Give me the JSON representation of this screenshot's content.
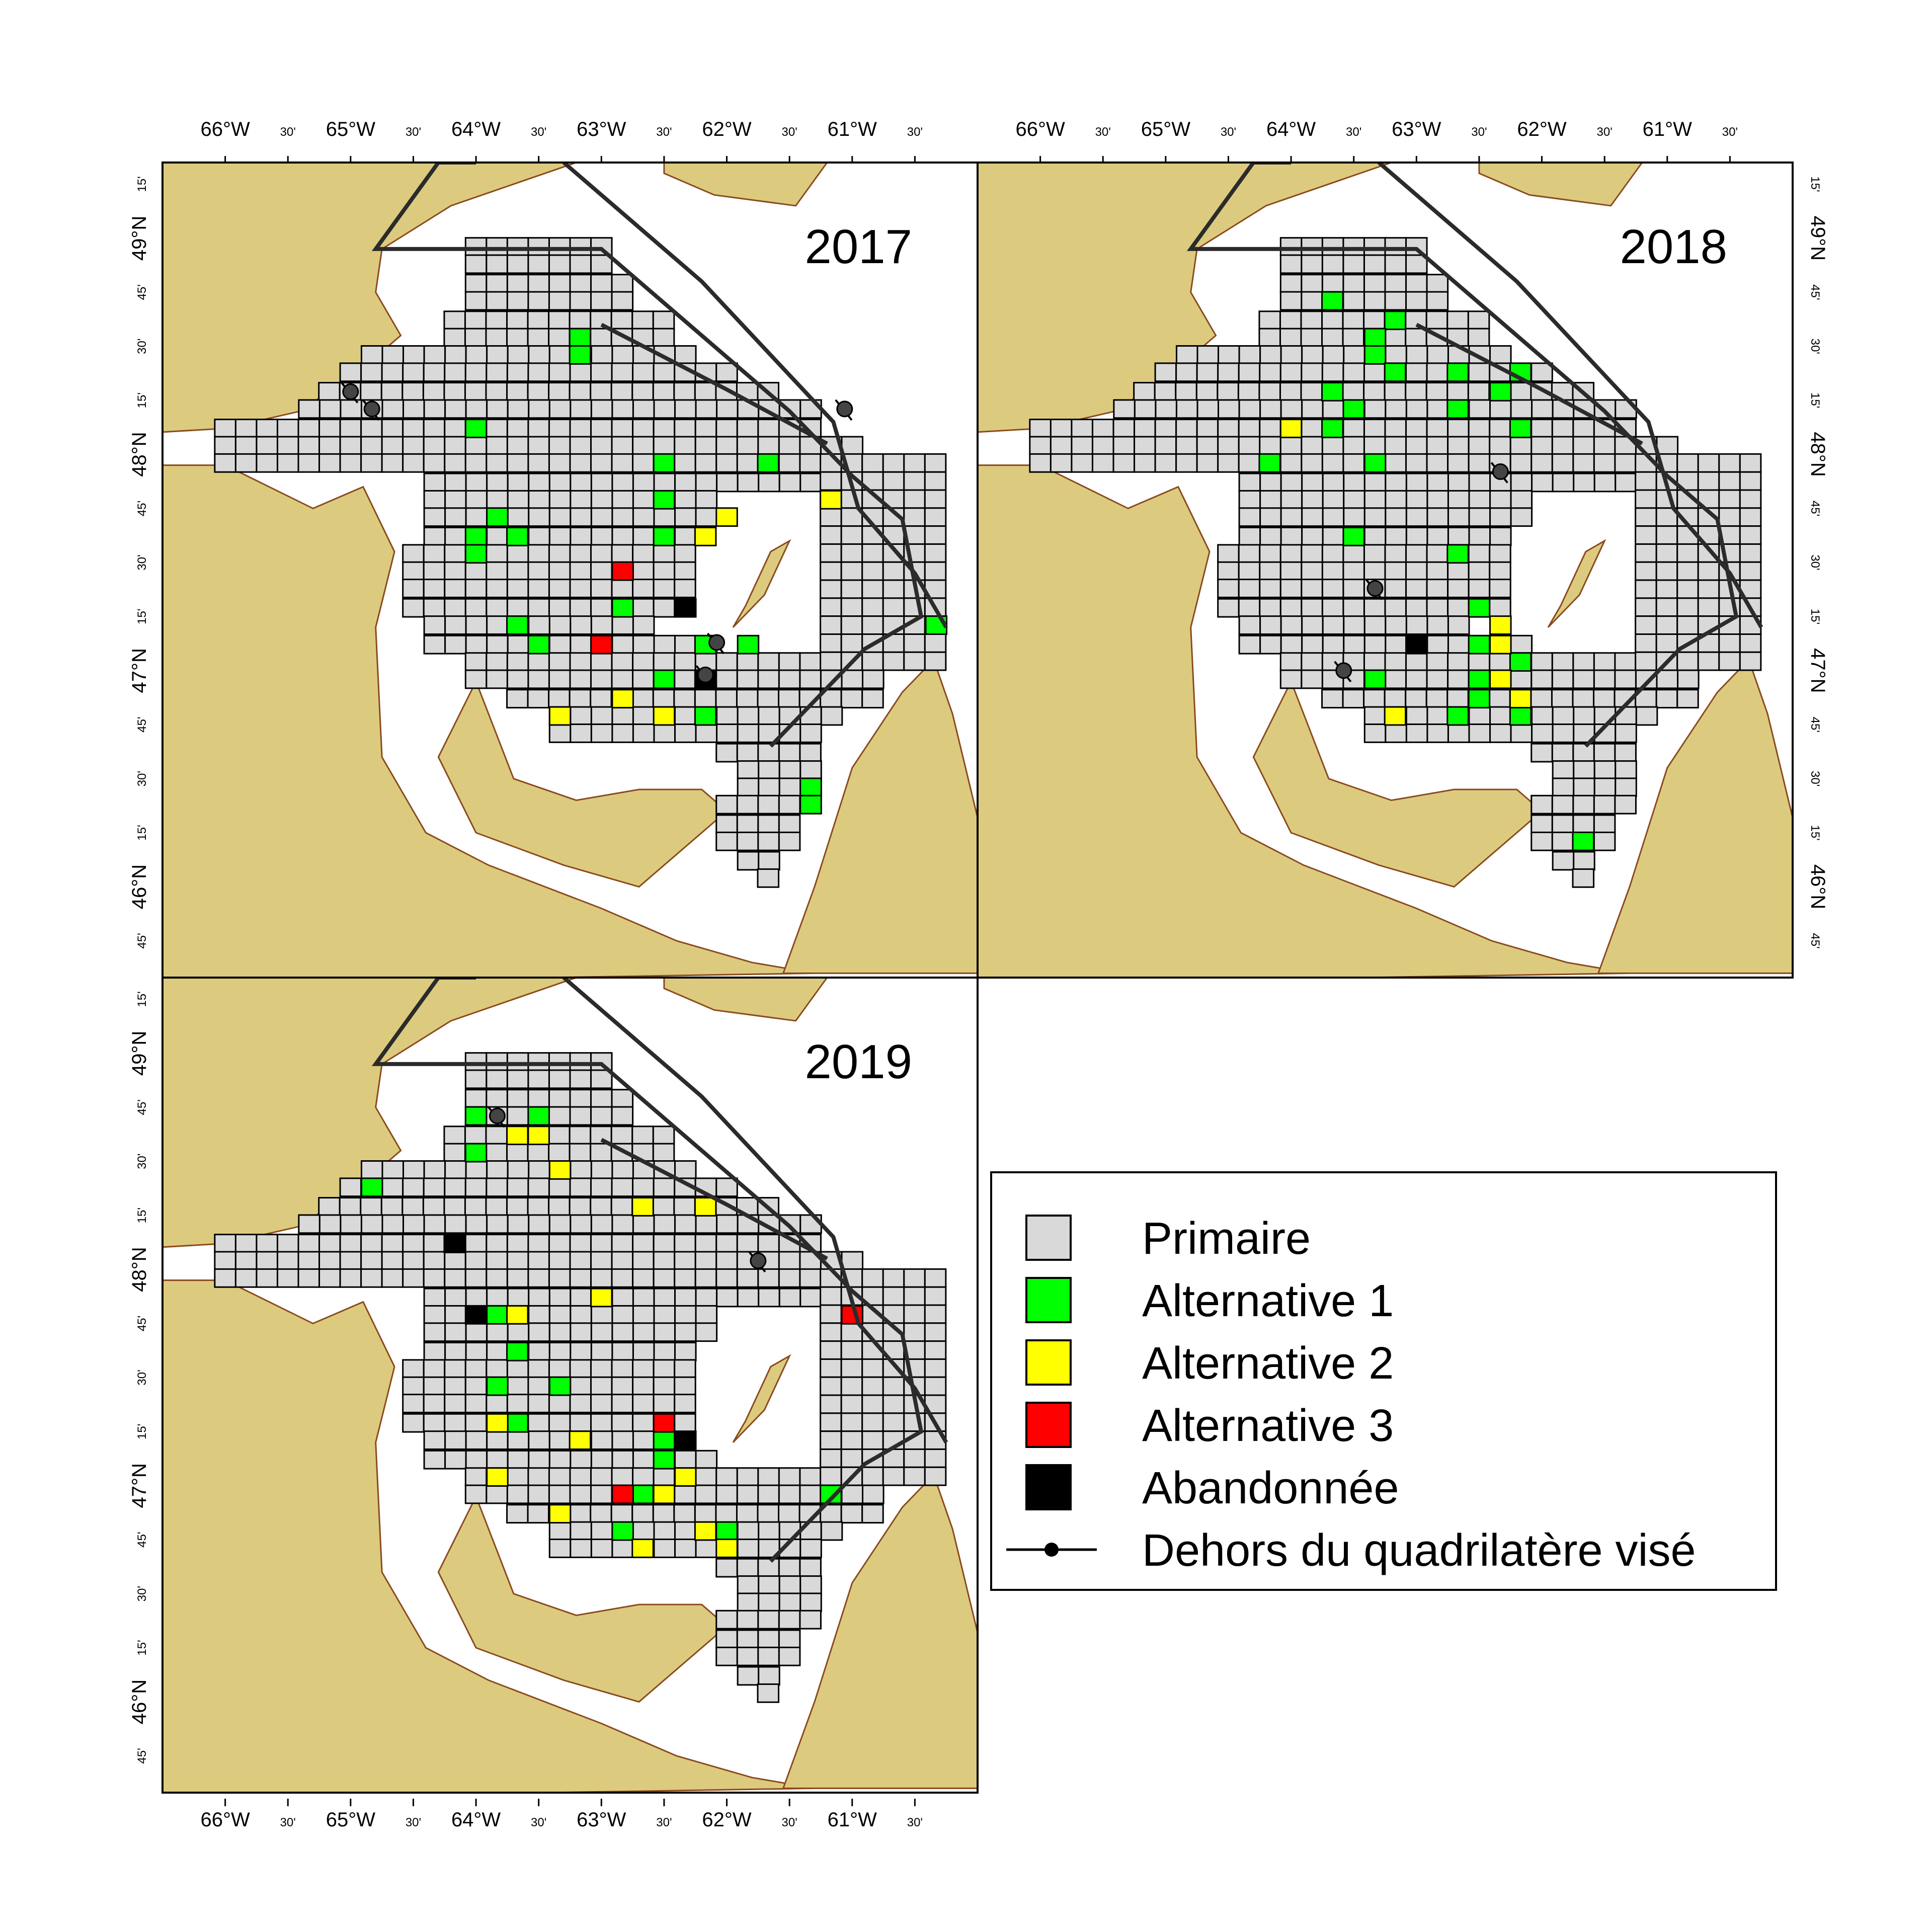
{
  "colors": {
    "land": "#dccb7e",
    "coast": "#8b4a1f",
    "water": "#ffffff",
    "cell_border": "#000000",
    "route": "#2b2b2b",
    "Primaire": "#d9d9d9",
    "Alternative 1": "#00ff00",
    "Alternative 2": "#ffff00",
    "Alternative 3": "#ff0000",
    "Abandonnée": "#000000"
  },
  "axes": {
    "lon_labels": [
      "66°W",
      "30'",
      "65°W",
      "30'",
      "64°W",
      "30'",
      "63°W",
      "30'",
      "62°W",
      "30'",
      "61°W",
      "30'"
    ],
    "lat_labels": [
      "15'",
      "49°N",
      "45'",
      "30'",
      "15'",
      "48°N",
      "45'",
      "30'",
      "15'",
      "47°N",
      "45'",
      "30'",
      "15'",
      "46°N",
      "45'"
    ]
  },
  "panels": [
    {
      "id": "2017",
      "year": "2017",
      "cells": {
        "Alternative 1": [
          [
            -63.17,
            48.54
          ],
          [
            -63.17,
            48.46
          ],
          [
            -64.0,
            48.12
          ],
          [
            -63.83,
            47.71
          ],
          [
            -63.67,
            47.62
          ],
          [
            -64.0,
            47.62
          ],
          [
            -64.0,
            47.54
          ],
          [
            -63.67,
            47.21
          ],
          [
            -63.5,
            47.12
          ],
          [
            -62.83,
            47.29
          ],
          [
            -62.5,
            47.62
          ],
          [
            -62.5,
            47.79
          ],
          [
            -62.5,
            47.96
          ],
          [
            -61.67,
            47.96
          ],
          [
            -62.5,
            46.96
          ],
          [
            -62.17,
            47.12
          ],
          [
            -61.83,
            47.12
          ],
          [
            -62.17,
            46.79
          ],
          [
            -61.33,
            46.46
          ],
          [
            -61.33,
            46.38
          ],
          [
            -60.33,
            47.21
          ]
        ],
        "Alternative 2": [
          [
            -62.17,
            47.62
          ],
          [
            -62.0,
            47.71
          ],
          [
            -61.17,
            47.79
          ],
          [
            -62.83,
            46.87
          ],
          [
            -63.33,
            46.79
          ],
          [
            -62.5,
            46.79
          ]
        ],
        "Alternative 3": [
          [
            -62.83,
            47.46
          ],
          [
            -63.0,
            47.12
          ]
        ],
        "Abandonnée": [
          [
            -62.33,
            47.29
          ],
          [
            -62.17,
            46.96
          ]
        ]
      },
      "outside_points": [
        [
          -65.0,
          48.29
        ],
        [
          -64.83,
          48.21
        ],
        [
          -62.08,
          47.13
        ],
        [
          -62.17,
          46.98
        ],
        [
          -61.06,
          48.21
        ]
      ]
    },
    {
      "id": "2018",
      "year": "2018",
      "cells": {
        "Alternative 1": [
          [
            -63.67,
            48.71
          ],
          [
            -63.17,
            48.62
          ],
          [
            -63.33,
            48.54
          ],
          [
            -63.33,
            48.46
          ],
          [
            -63.17,
            48.38
          ],
          [
            -62.67,
            48.38
          ],
          [
            -62.33,
            48.29
          ],
          [
            -63.67,
            48.29
          ],
          [
            -63.5,
            48.21
          ],
          [
            -63.67,
            48.12
          ],
          [
            -63.33,
            47.96
          ],
          [
            -62.67,
            48.21
          ],
          [
            -64.17,
            47.96
          ],
          [
            -62.17,
            48.12
          ],
          [
            -62.17,
            48.38
          ],
          [
            -63.5,
            47.62
          ],
          [
            -62.67,
            47.54
          ],
          [
            -62.5,
            47.29
          ],
          [
            -62.5,
            47.12
          ],
          [
            -62.5,
            46.96
          ],
          [
            -62.17,
            47.04
          ],
          [
            -62.17,
            46.87
          ],
          [
            -62.17,
            46.79
          ],
          [
            -62.67,
            46.79
          ],
          [
            -63.33,
            46.96
          ],
          [
            -62.5,
            46.87
          ],
          [
            -61.67,
            46.21
          ]
        ],
        "Alternative 2": [
          [
            -64.0,
            48.12
          ],
          [
            -62.33,
            47.21
          ],
          [
            -62.33,
            47.12
          ],
          [
            -62.33,
            46.96
          ],
          [
            -62.17,
            46.87
          ],
          [
            -63.17,
            46.79
          ]
        ],
        "Alternative 3": [],
        "Abandonnée": [
          [
            -63.0,
            47.12
          ]
        ]
      },
      "outside_points": [
        [
          -62.33,
          47.92
        ],
        [
          -63.33,
          47.38
        ],
        [
          -63.58,
          47.0
        ]
      ]
    },
    {
      "id": "2019",
      "year": "2019",
      "cells": {
        "Alternative 1": [
          [
            -64.0,
            48.71
          ],
          [
            -63.5,
            48.71
          ],
          [
            -64.0,
            48.54
          ],
          [
            -64.83,
            48.38
          ],
          [
            -63.83,
            47.79
          ],
          [
            -63.67,
            47.62
          ],
          [
            -63.83,
            47.46
          ],
          [
            -63.33,
            47.46
          ],
          [
            -62.5,
            47.21
          ],
          [
            -62.5,
            47.12
          ],
          [
            -63.67,
            47.29
          ],
          [
            -62.67,
            46.96
          ],
          [
            -62.83,
            46.79
          ],
          [
            -62.0,
            46.79
          ],
          [
            -61.17,
            46.96
          ]
        ],
        "Alternative 2": [
          [
            -63.5,
            48.62
          ],
          [
            -63.67,
            48.62
          ],
          [
            -63.33,
            48.46
          ],
          [
            -62.67,
            48.29
          ],
          [
            -62.17,
            48.29
          ],
          [
            -63.0,
            47.87
          ],
          [
            -63.67,
            47.79
          ],
          [
            -63.83,
            47.29
          ],
          [
            -63.17,
            47.21
          ],
          [
            -63.83,
            47.04
          ],
          [
            -62.33,
            47.04
          ],
          [
            -62.5,
            46.96
          ],
          [
            -63.33,
            46.87
          ],
          [
            -62.17,
            46.79
          ],
          [
            -62.67,
            46.71
          ],
          [
            -62.0,
            46.71
          ]
        ],
        "Alternative 3": [
          [
            -62.5,
            47.29
          ],
          [
            -62.83,
            46.96
          ],
          [
            -61.0,
            47.79
          ]
        ],
        "Abandonnée": [
          [
            -64.17,
            48.12
          ],
          [
            -64.0,
            47.79
          ],
          [
            -62.33,
            47.21
          ]
        ]
      },
      "outside_points": [
        [
          -63.83,
          48.71
        ],
        [
          -61.75,
          48.04
        ]
      ]
    }
  ],
  "legend": {
    "entries": [
      {
        "label": "Primaire",
        "key": "Primaire"
      },
      {
        "label": "Alternative 1",
        "key": "Alternative 1"
      },
      {
        "label": "Alternative 2",
        "key": "Alternative 2"
      },
      {
        "label": "Alternative 3",
        "key": "Alternative 3"
      },
      {
        "label": "Abandonnée",
        "key": "Abandonnée"
      },
      {
        "label": "Dehors du quadrilatère visé",
        "key": "outside"
      }
    ]
  }
}
